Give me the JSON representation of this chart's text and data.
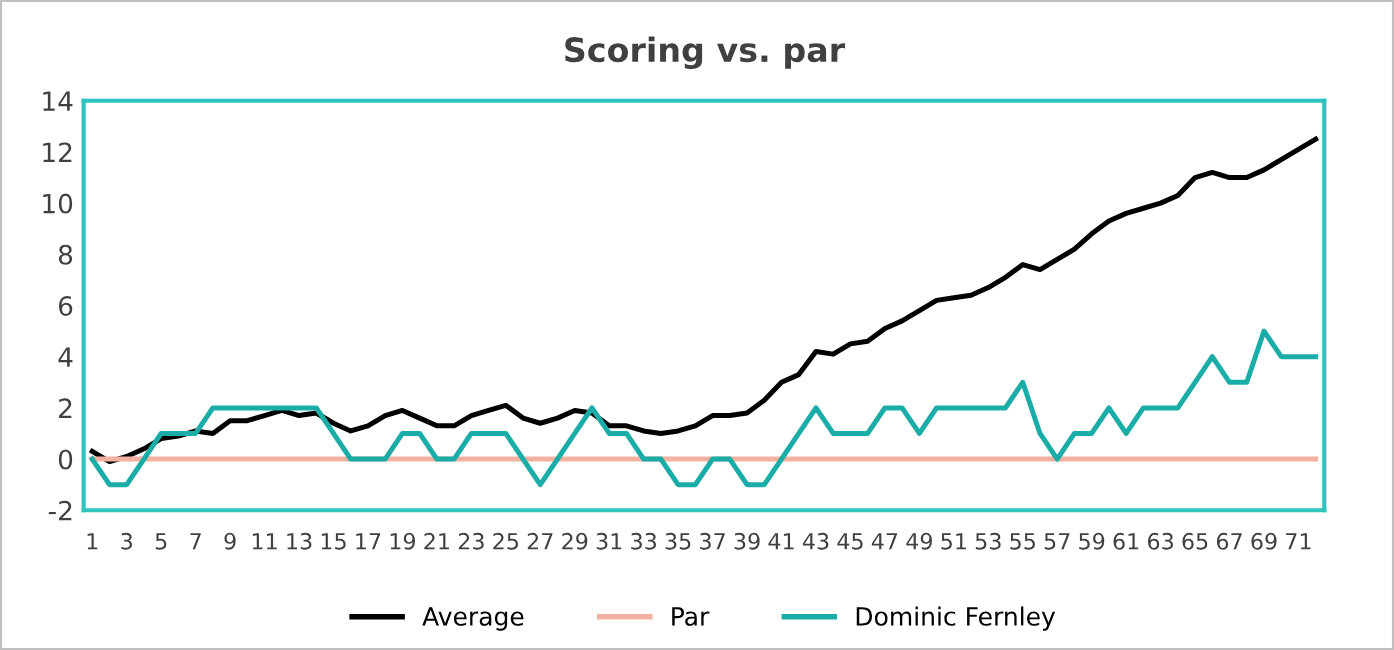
{
  "chart_data": {
    "type": "line",
    "title": "Scoring vs. par",
    "categories": [
      "1",
      null,
      "3",
      null,
      "5",
      null,
      "7",
      null,
      "9",
      null,
      "11",
      null,
      "13",
      null,
      "15",
      null,
      "17",
      null,
      "19",
      null,
      "21",
      null,
      "23",
      null,
      "25",
      null,
      "27",
      null,
      "29",
      null,
      "31",
      null,
      "33",
      null,
      "35",
      null,
      "37",
      null,
      "39",
      null,
      "41",
      null,
      "43",
      null,
      "45",
      null,
      "47",
      null,
      "49",
      null,
      "51",
      null,
      "53",
      null,
      "55",
      null,
      "57",
      null,
      "59",
      null,
      "61",
      null,
      "63",
      null,
      "65",
      null,
      "67",
      null,
      "69",
      null,
      "71",
      null
    ],
    "series": [
      {
        "name": "Average",
        "color": "#000000",
        "values": [
          0.3,
          -0.1,
          0.1,
          0.4,
          0.8,
          0.9,
          1.1,
          1.0,
          1.5,
          1.5,
          1.7,
          1.9,
          1.7,
          1.8,
          1.4,
          1.1,
          1.3,
          1.7,
          1.9,
          1.6,
          1.3,
          1.3,
          1.7,
          1.9,
          2.1,
          1.6,
          1.4,
          1.6,
          1.9,
          1.8,
          1.3,
          1.3,
          1.1,
          1.0,
          1.1,
          1.3,
          1.7,
          1.7,
          1.8,
          2.3,
          3.0,
          3.3,
          4.2,
          4.1,
          4.5,
          4.6,
          5.1,
          5.4,
          5.8,
          6.2,
          6.3,
          6.4,
          6.7,
          7.1,
          7.6,
          7.4,
          7.8,
          8.2,
          8.8,
          9.3,
          9.6,
          9.8,
          10.0,
          10.3,
          11.0,
          11.2,
          11.0,
          11.0,
          11.3,
          11.7,
          12.1,
          12.5
        ]
      },
      {
        "name": "Par",
        "color": "#f4b1a0",
        "values": [
          0,
          0,
          0,
          0,
          0,
          0,
          0,
          0,
          0,
          0,
          0,
          0,
          0,
          0,
          0,
          0,
          0,
          0,
          0,
          0,
          0,
          0,
          0,
          0,
          0,
          0,
          0,
          0,
          0,
          0,
          0,
          0,
          0,
          0,
          0,
          0,
          0,
          0,
          0,
          0,
          0,
          0,
          0,
          0,
          0,
          0,
          0,
          0,
          0,
          0,
          0,
          0,
          0,
          0,
          0,
          0,
          0,
          0,
          0,
          0,
          0,
          0,
          0,
          0,
          0,
          0,
          0,
          0,
          0,
          0,
          0,
          0
        ]
      },
      {
        "name": "Dominic Fernley",
        "color": "#1aada8",
        "values": [
          0,
          -1,
          -1,
          0,
          1,
          1,
          1,
          2,
          2,
          2,
          2,
          2,
          2,
          2,
          1,
          0,
          0,
          0,
          1,
          1,
          0,
          0,
          1,
          1,
          1,
          0,
          -1,
          0,
          1,
          2,
          1,
          1,
          0,
          0,
          -1,
          -1,
          0,
          0,
          -1,
          -1,
          0,
          1,
          2,
          1,
          1,
          1,
          2,
          2,
          1,
          2,
          2,
          2,
          2,
          2,
          3,
          1,
          0,
          1,
          1,
          2,
          1,
          2,
          2,
          2,
          3,
          4,
          3,
          3,
          5,
          4,
          4,
          4
        ]
      }
    ],
    "ylim": [
      -2,
      14
    ],
    "yticks": [
      -2,
      0,
      2,
      4,
      6,
      8,
      10,
      12,
      14
    ],
    "grid": false,
    "legend": "bottom",
    "marker": "none",
    "line_style": "solid"
  }
}
